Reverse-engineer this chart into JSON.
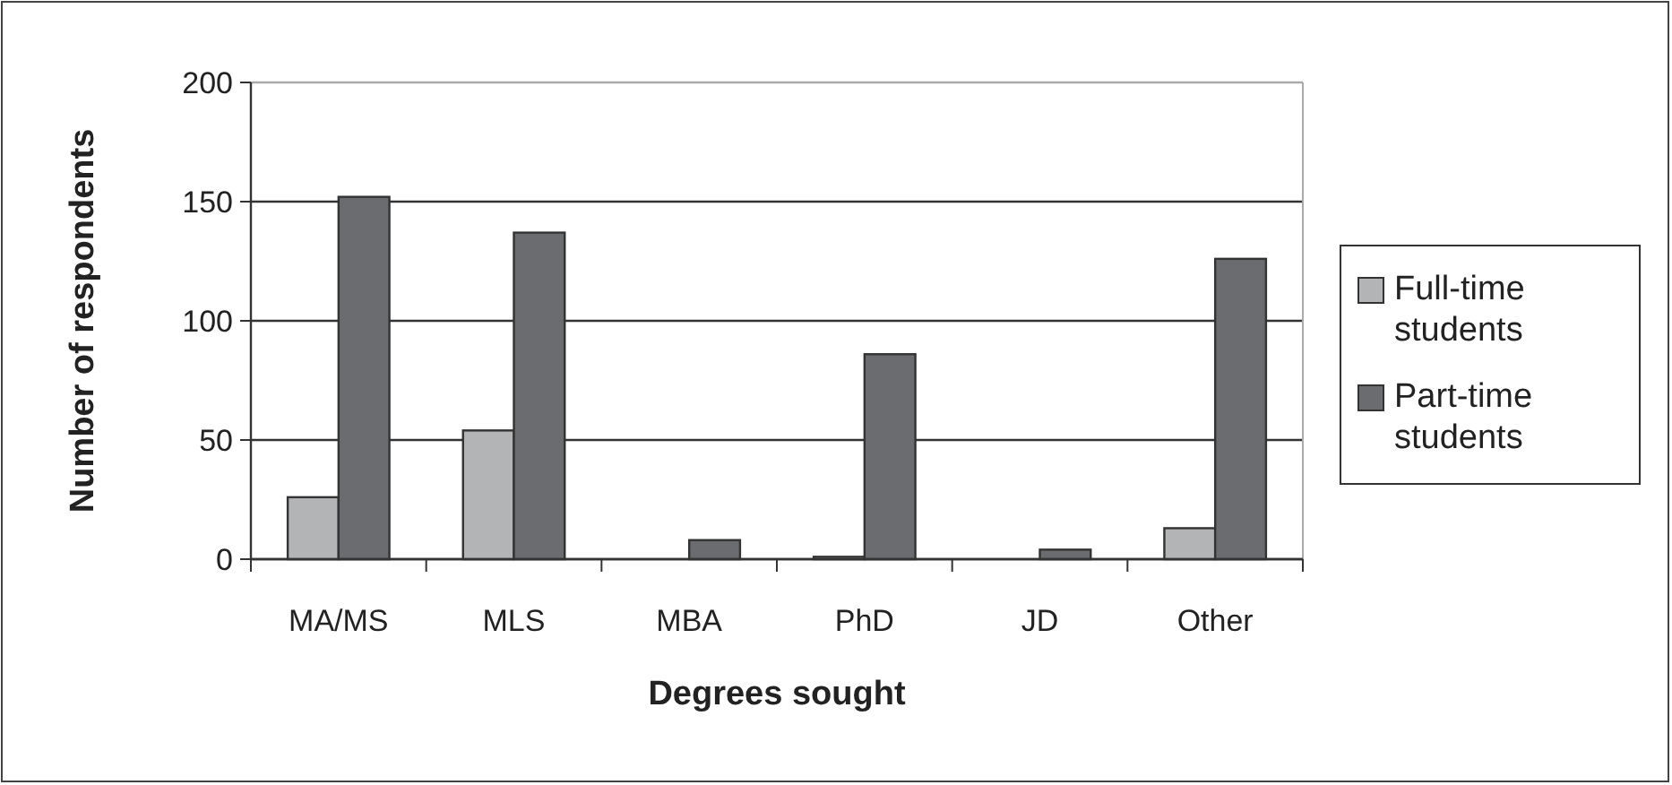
{
  "chart_data": {
    "type": "bar",
    "xlabel": "Degrees sought",
    "ylabel": "Number of respondents",
    "categories": [
      "MA/MS",
      "MLS",
      "MBA",
      "PhD",
      "JD",
      "Other"
    ],
    "series": [
      {
        "name": "Full-time students",
        "color": "#b3b4b6",
        "values": [
          26,
          54,
          0,
          1,
          0,
          13
        ]
      },
      {
        "name": "Part-time students",
        "color": "#6b6c6f",
        "values": [
          152,
          137,
          8,
          86,
          4,
          126
        ]
      }
    ],
    "ylim": [
      0,
      200
    ],
    "yticks": [
      0,
      50,
      100,
      150,
      200
    ],
    "grid": "y",
    "legend": "right"
  }
}
